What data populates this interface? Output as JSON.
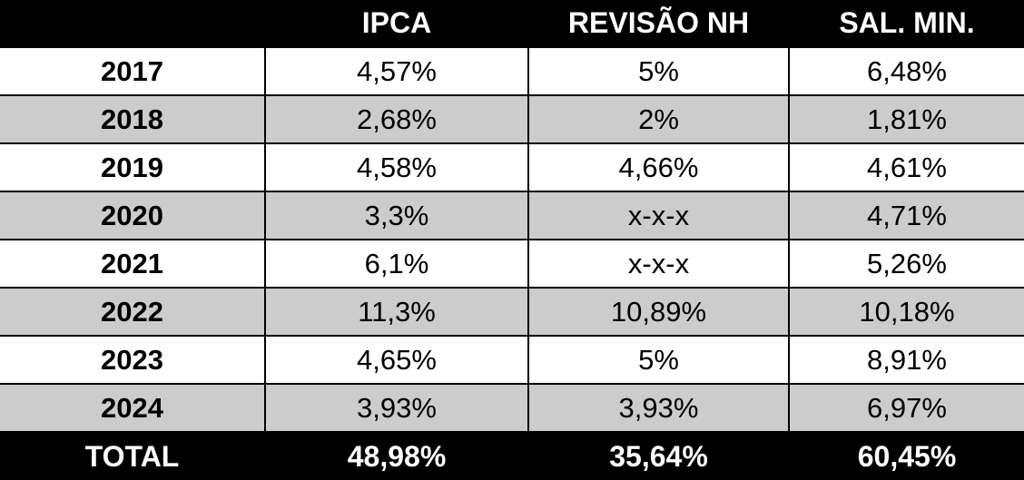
{
  "colors": {
    "header_bg": "#000000",
    "header_text": "#ffffff",
    "row_bg": "#ffffff",
    "row_alt_bg": "#cccccc",
    "border": "#000000",
    "body_text": "#000000"
  },
  "chart_data": {
    "type": "table",
    "title": "",
    "columns": [
      "",
      "IPCA",
      "REVISÃO NH",
      "SAL. MIN."
    ],
    "rows": [
      [
        "2017",
        "4,57%",
        "5%",
        "6,48%"
      ],
      [
        "2018",
        "2,68%",
        "2%",
        "1,81%"
      ],
      [
        "2019",
        "4,58%",
        "4,66%",
        "4,61%"
      ],
      [
        "2020",
        "3,3%",
        "x-x-x",
        "4,71%"
      ],
      [
        "2021",
        "6,1%",
        "x-x-x",
        "5,26%"
      ],
      [
        "2022",
        "11,3%",
        "10,89%",
        "10,18%"
      ],
      [
        "2023",
        "4,65%",
        "5%",
        "8,91%"
      ],
      [
        "2024",
        "3,93%",
        "3,93%",
        "6,97%"
      ]
    ],
    "total_row": [
      "TOTAL",
      "48,98%",
      "35,64%",
      "60,45%"
    ],
    "layout": {
      "zebra_striping": true,
      "header_style": "black-bar",
      "footer_style": "black-bar"
    }
  }
}
